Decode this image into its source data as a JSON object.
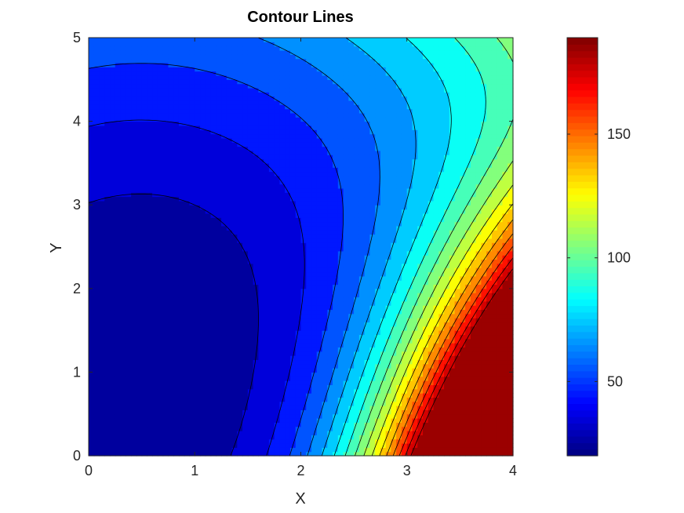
{
  "chart_data": {
    "type": "contour",
    "title": "Contour Lines",
    "xlabel": "X",
    "ylabel": "Y",
    "xlim": [
      0,
      4
    ],
    "ylim": [
      0,
      5
    ],
    "x_ticks": [
      "0",
      "1",
      "2",
      "3",
      "4"
    ],
    "y_ticks": [
      "0",
      "1",
      "2",
      "3",
      "4",
      "5"
    ],
    "x_tick_values": [
      0,
      1,
      2,
      3,
      4
    ],
    "y_tick_values": [
      0,
      1,
      2,
      3,
      4,
      5
    ],
    "filled": true,
    "contour_lines": "black",
    "colormap": "jet",
    "z_range": [
      20,
      189
    ],
    "z_min_location": [
      0.5,
      1.0
    ],
    "level_step": 10,
    "colorbar": {
      "placement": "right",
      "ticks": [
        "50",
        "100",
        "150"
      ],
      "tick_values": [
        50,
        100,
        150
      ],
      "range": [
        20,
        189
      ]
    },
    "grid": false
  }
}
